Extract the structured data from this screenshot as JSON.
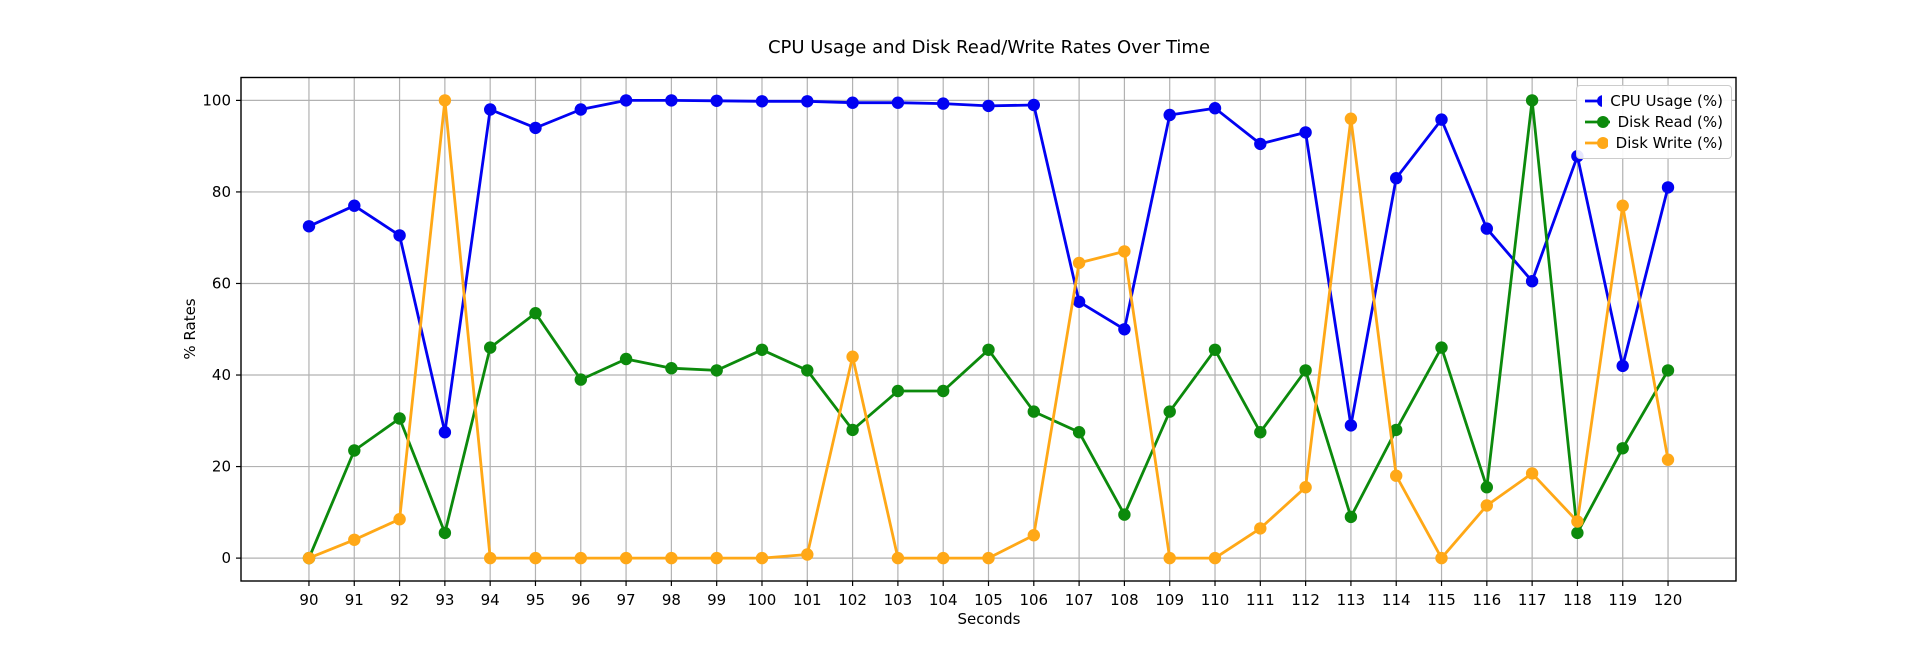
{
  "chart_data": {
    "type": "line",
    "title": "CPU Usage and Disk Read/Write Rates Over Time",
    "xlabel": "Seconds",
    "ylabel": "% Rates",
    "x": [
      90,
      91,
      92,
      93,
      94,
      95,
      96,
      97,
      98,
      99,
      100,
      101,
      102,
      103,
      104,
      105,
      106,
      107,
      108,
      109,
      110,
      111,
      112,
      113,
      114,
      115,
      116,
      117,
      118,
      119,
      120
    ],
    "series": [
      {
        "name": "CPU Usage (%)",
        "color": "#0202f2",
        "values": [
          72.5,
          77,
          70.5,
          27.5,
          98,
          94,
          98,
          100,
          100,
          99.9,
          99.8,
          99.8,
          99.5,
          99.5,
          99.3,
          98.8,
          99,
          56,
          50,
          96.8,
          98.3,
          90.5,
          93,
          29,
          83,
          95.8,
          72,
          60.5,
          87.8,
          42,
          81
        ]
      },
      {
        "name": "Disk Read (%)",
        "color": "#0c8a0c",
        "values": [
          0,
          23.5,
          30.5,
          5.5,
          46,
          53.5,
          39,
          43.5,
          41.5,
          41,
          45.5,
          41,
          28,
          36.5,
          36.5,
          45.5,
          32,
          27.5,
          9.5,
          32,
          45.5,
          27.5,
          41,
          9,
          28,
          46,
          15.5,
          100,
          5.5,
          24,
          41
        ]
      },
      {
        "name": "Disk Write (%)",
        "color": "#ffa817",
        "values": [
          0,
          4,
          8.5,
          100,
          0,
          0,
          0,
          0,
          0,
          0,
          0,
          0.8,
          44,
          0,
          0,
          0,
          5,
          64.5,
          67,
          0,
          0,
          6.5,
          15.5,
          96,
          18,
          0,
          11.5,
          18.5,
          8,
          77,
          21.5
        ]
      }
    ],
    "xticks": [
      90,
      91,
      92,
      93,
      94,
      95,
      96,
      97,
      98,
      99,
      100,
      101,
      102,
      103,
      104,
      105,
      106,
      107,
      108,
      109,
      110,
      111,
      112,
      113,
      114,
      115,
      116,
      117,
      118,
      119,
      120
    ],
    "yticks": [
      0,
      20,
      40,
      60,
      80,
      100
    ],
    "xlim": [
      88.5,
      121.5
    ],
    "ylim": [
      -5,
      105
    ],
    "grid": true,
    "grid_color": "#b2b2b2",
    "legend_position": "upper right",
    "legend_entries": [
      "CPU Usage (%)",
      "Disk Read (%)",
      "Disk Write (%)"
    ]
  }
}
